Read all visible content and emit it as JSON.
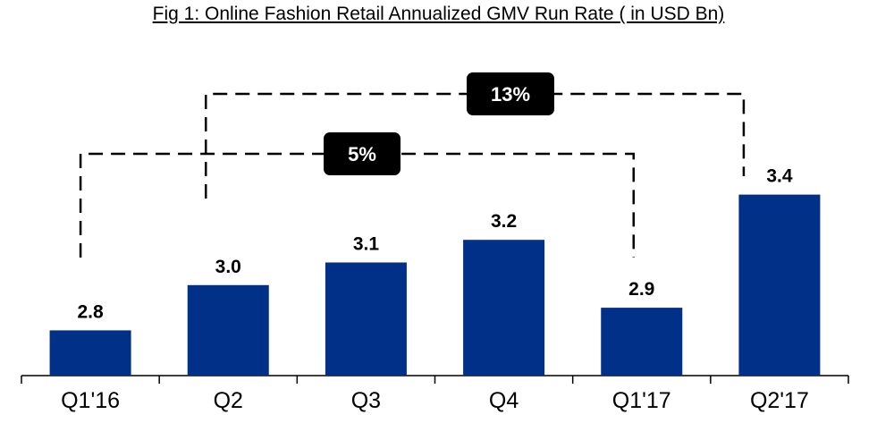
{
  "chart_data": {
    "type": "bar",
    "title": "Fig 1: Online Fashion Retail Annualized GMV Run Rate ( in USD Bn)",
    "categories": [
      "Q1'16",
      "Q2",
      "Q3",
      "Q4",
      "Q1'17",
      "Q2'17"
    ],
    "values": [
      2.8,
      3.0,
      3.1,
      3.2,
      2.9,
      3.4
    ],
    "value_labels": [
      "2.8",
      "3.0",
      "3.1",
      "3.2",
      "2.9",
      "3.4"
    ],
    "bar_color": "#003087",
    "grid": false,
    "annotations": [
      {
        "label": "13%",
        "from_category": "Q2",
        "to_category": "Q2'17"
      },
      {
        "label": "5%",
        "from_category": "Q1'16",
        "to_category": "Q1'17"
      }
    ]
  }
}
